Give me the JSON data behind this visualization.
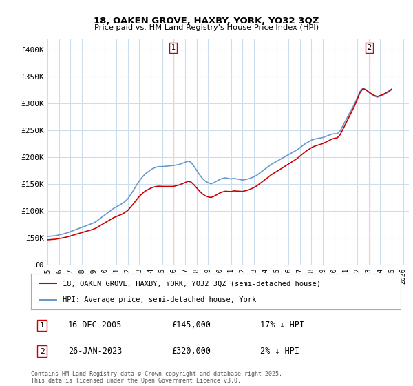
{
  "title_line1": "18, OAKEN GROVE, HAXBY, YORK, YO32 3QZ",
  "title_line2": "Price paid vs. HM Land Registry's House Price Index (HPI)",
  "xlim_start": 1995.0,
  "xlim_end": 2026.5,
  "ylim_min": 0,
  "ylim_max": 420000,
  "yticks": [
    0,
    50000,
    100000,
    150000,
    200000,
    250000,
    300000,
    350000,
    400000
  ],
  "ytick_labels": [
    "£0",
    "£50K",
    "£100K",
    "£150K",
    "£200K",
    "£250K",
    "£300K",
    "£350K",
    "£400K"
  ],
  "grid_color": "#ccddee",
  "background_color": "#ffffff",
  "hpi_color": "#6699cc",
  "price_color": "#cc0000",
  "vline1_x": 2005.96,
  "vline2_x": 2023.07,
  "sale1_date": "16-DEC-2005",
  "sale1_price": "£145,000",
  "sale1_hpi": "17% ↓ HPI",
  "sale2_date": "26-JAN-2023",
  "sale2_price": "£320,000",
  "sale2_hpi": "2% ↓ HPI",
  "legend_label1": "18, OAKEN GROVE, HAXBY, YORK, YO32 3QZ (semi-detached house)",
  "legend_label2": "HPI: Average price, semi-detached house, York",
  "footer": "Contains HM Land Registry data © Crown copyright and database right 2025.\nThis data is licensed under the Open Government Licence v3.0.",
  "hpi_data_years": [
    1995.0,
    1995.25,
    1995.5,
    1995.75,
    1996.0,
    1996.25,
    1996.5,
    1996.75,
    1997.0,
    1997.25,
    1997.5,
    1997.75,
    1998.0,
    1998.25,
    1998.5,
    1998.75,
    1999.0,
    1999.25,
    1999.5,
    1999.75,
    2000.0,
    2000.25,
    2000.5,
    2000.75,
    2001.0,
    2001.25,
    2001.5,
    2001.75,
    2002.0,
    2002.25,
    2002.5,
    2002.75,
    2003.0,
    2003.25,
    2003.5,
    2003.75,
    2004.0,
    2004.25,
    2004.5,
    2004.75,
    2005.0,
    2005.25,
    2005.5,
    2005.75,
    2006.0,
    2006.25,
    2006.5,
    2006.75,
    2007.0,
    2007.25,
    2007.5,
    2007.75,
    2008.0,
    2008.25,
    2008.5,
    2008.75,
    2009.0,
    2009.25,
    2009.5,
    2009.75,
    2010.0,
    2010.25,
    2010.5,
    2010.75,
    2011.0,
    2011.25,
    2011.5,
    2011.75,
    2012.0,
    2012.25,
    2012.5,
    2012.75,
    2013.0,
    2013.25,
    2013.5,
    2013.75,
    2014.0,
    2014.25,
    2014.5,
    2014.75,
    2015.0,
    2015.25,
    2015.5,
    2015.75,
    2016.0,
    2016.25,
    2016.5,
    2016.75,
    2017.0,
    2017.25,
    2017.5,
    2017.75,
    2018.0,
    2018.25,
    2018.5,
    2018.75,
    2019.0,
    2019.25,
    2019.5,
    2019.75,
    2020.0,
    2020.25,
    2020.5,
    2020.75,
    2021.0,
    2021.25,
    2021.5,
    2021.75,
    2022.0,
    2022.25,
    2022.5,
    2022.75,
    2023.0,
    2023.25,
    2023.5,
    2023.75,
    2024.0,
    2024.25,
    2024.5,
    2024.75,
    2025.0
  ],
  "hpi_values": [
    52000,
    52500,
    53000,
    53500,
    55000,
    56000,
    57500,
    59000,
    61000,
    63000,
    65000,
    67000,
    69000,
    71000,
    73000,
    75000,
    77000,
    80000,
    84000,
    88000,
    92000,
    96000,
    100000,
    104000,
    107000,
    110000,
    113000,
    117000,
    122000,
    130000,
    138000,
    147000,
    155000,
    162000,
    168000,
    172000,
    176000,
    179000,
    181000,
    182000,
    182000,
    182500,
    183000,
    183500,
    184000,
    185000,
    186000,
    188000,
    190000,
    192000,
    190000,
    183000,
    175000,
    167000,
    160000,
    155000,
    152000,
    150000,
    152000,
    155000,
    158000,
    160000,
    161000,
    160000,
    159000,
    160000,
    159000,
    158000,
    157000,
    158000,
    159000,
    161000,
    163000,
    166000,
    170000,
    174000,
    178000,
    182000,
    186000,
    189000,
    192000,
    195000,
    198000,
    201000,
    204000,
    207000,
    210000,
    213000,
    217000,
    221000,
    225000,
    228000,
    231000,
    233000,
    234000,
    235000,
    236000,
    238000,
    240000,
    242000,
    243000,
    243000,
    248000,
    258000,
    268000,
    278000,
    288000,
    298000,
    310000,
    322000,
    328000,
    325000,
    320000,
    316000,
    313000,
    311000,
    313000,
    315000,
    318000,
    321000,
    325000
  ],
  "price_key_years": [
    1995.75,
    2005.96,
    2023.07
  ],
  "price_key_values": [
    47000,
    145000,
    320000
  ]
}
